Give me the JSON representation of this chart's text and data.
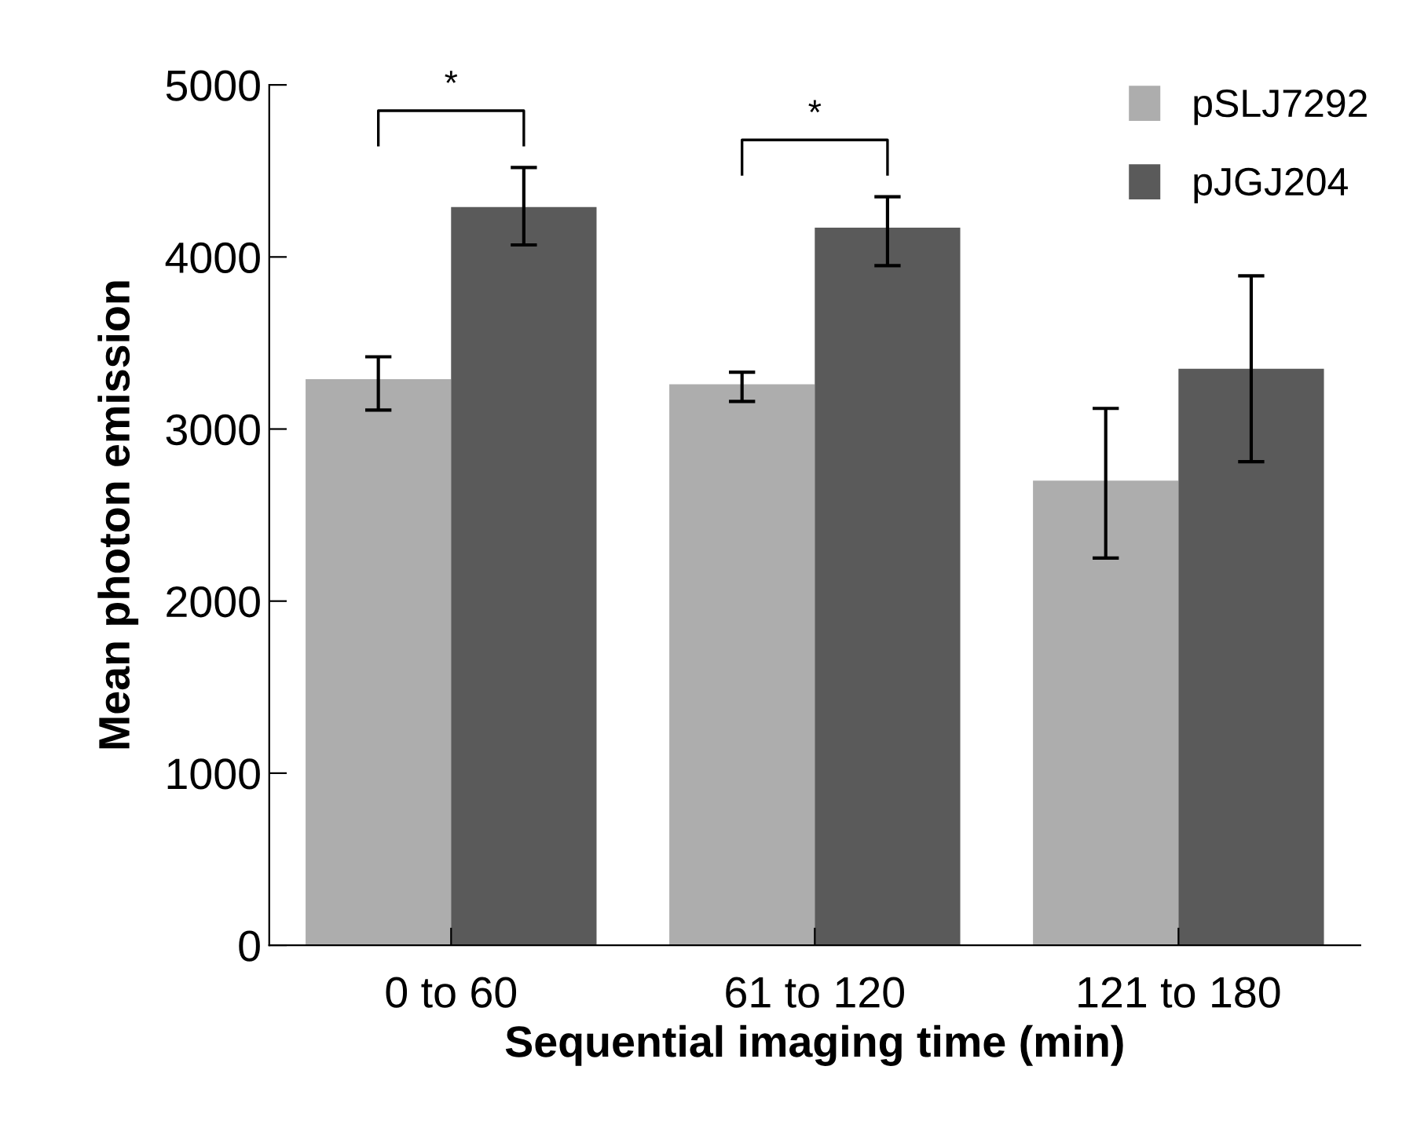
{
  "chart_data": {
    "type": "bar",
    "xlabel": "Sequential imaging time (min)",
    "ylabel": "Mean photon emission",
    "categories": [
      "0 to 60",
      "61 to 120",
      "121 to 180"
    ],
    "series": [
      {
        "name": "pSLJ7292",
        "color": "#adadad",
        "values": [
          3290,
          3260,
          2700
        ],
        "errors": [
          [
            3110,
            3420
          ],
          [
            3160,
            3330
          ],
          [
            2250,
            3120
          ]
        ]
      },
      {
        "name": "pJGJ204",
        "color": "#5a5a5a",
        "values": [
          4290,
          4170,
          3350
        ],
        "errors": [
          [
            4070,
            4520
          ],
          [
            3950,
            4350
          ],
          [
            2810,
            3890
          ]
        ]
      }
    ],
    "annotations": [
      "*",
      "*"
    ],
    "ylim": [
      0,
      5000
    ],
    "yticks": [
      0,
      1000,
      2000,
      3000,
      4000,
      5000
    ],
    "grid": false,
    "legend": "top right"
  }
}
